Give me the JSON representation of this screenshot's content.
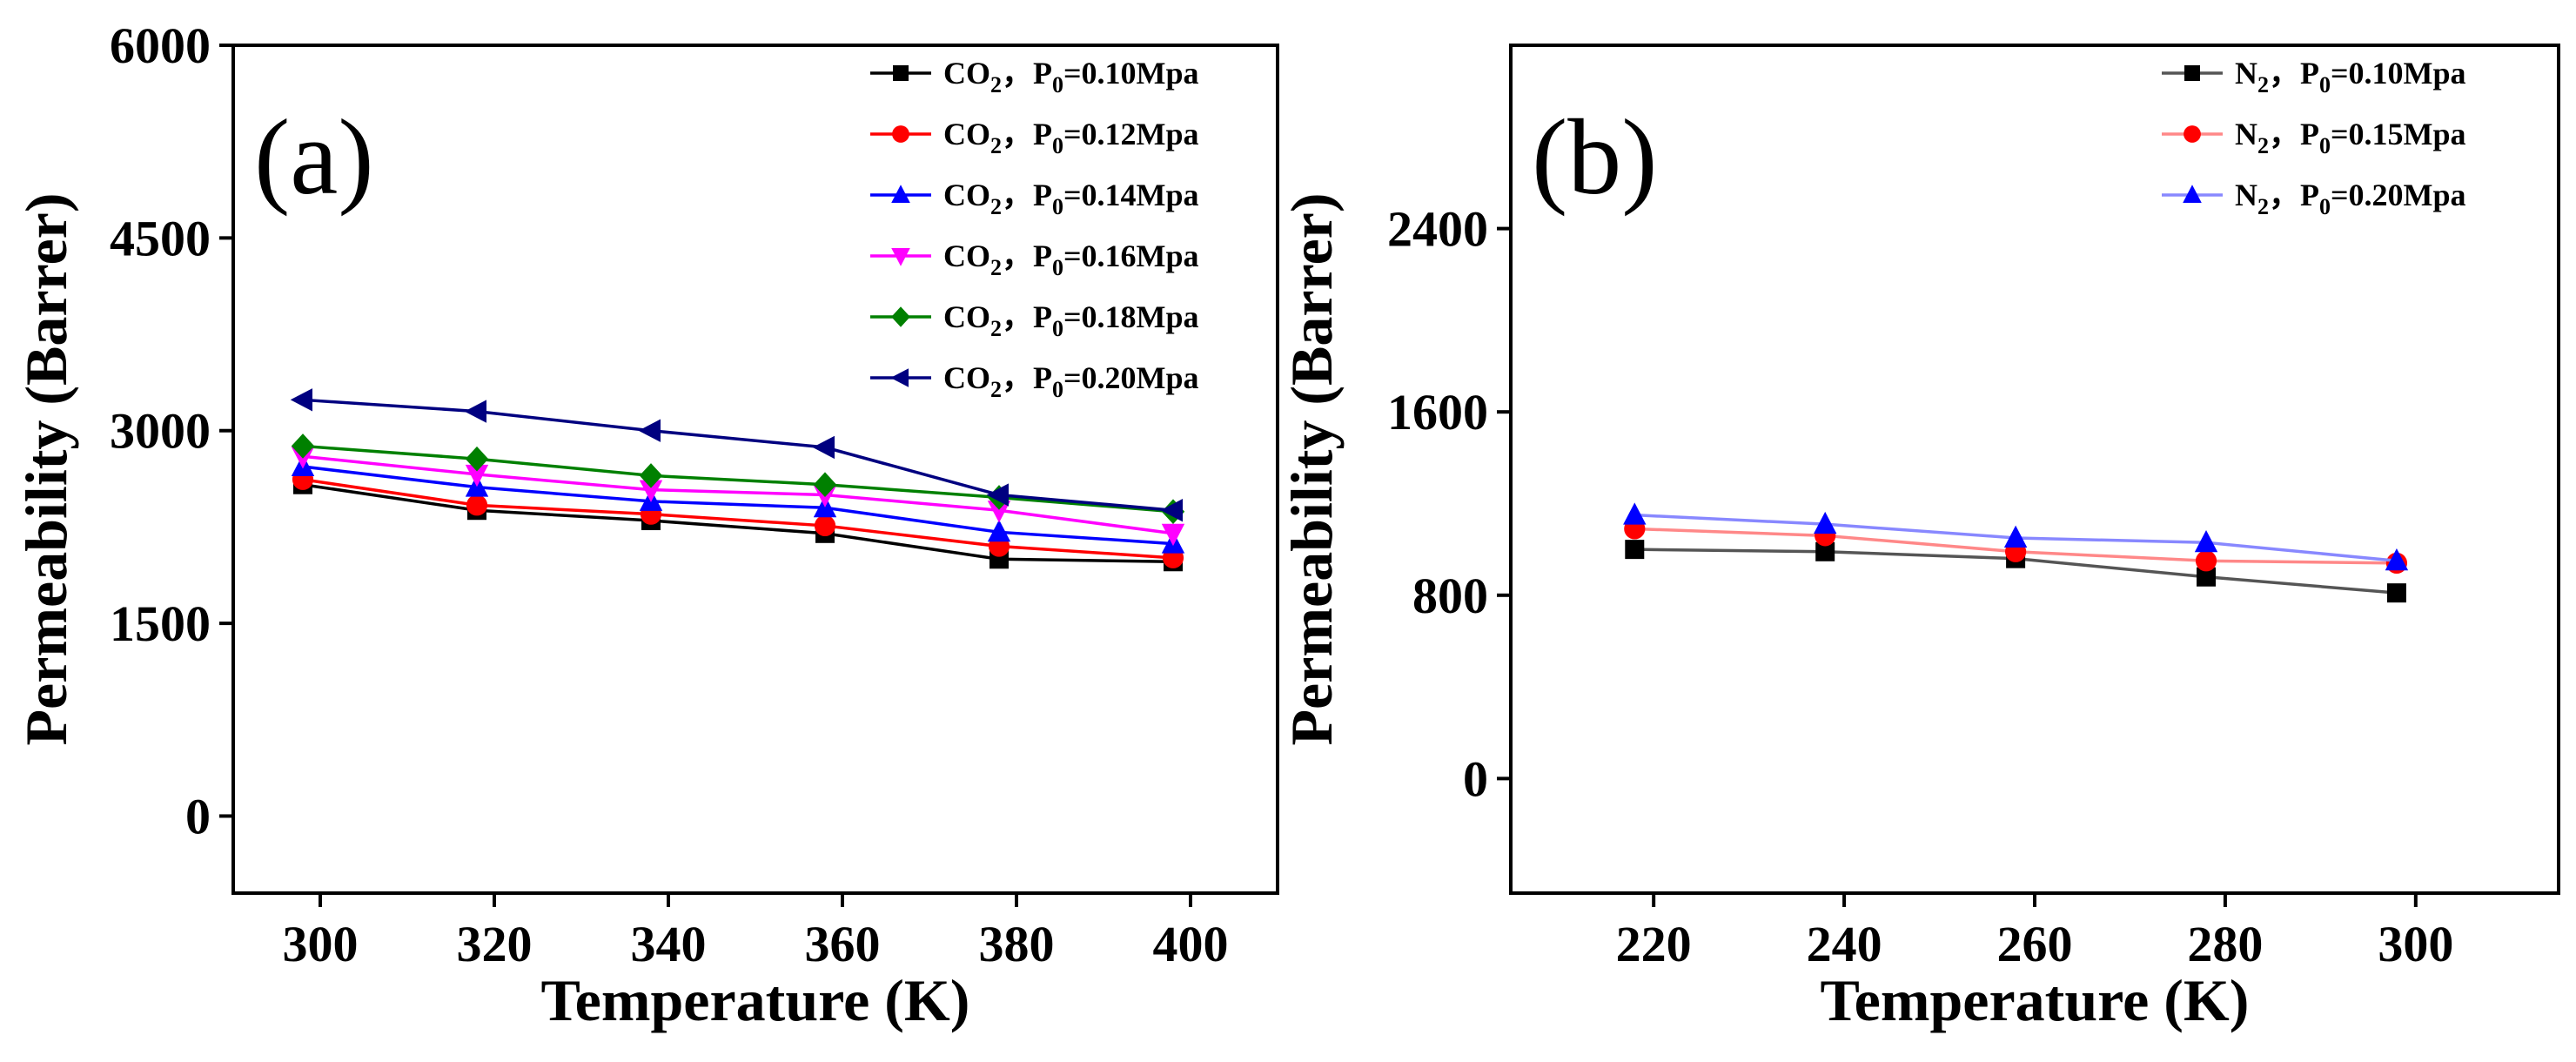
{
  "chart_data": [
    {
      "type": "line",
      "panel_label": "(a)",
      "xlabel": "Temperature (K)",
      "ylabel": "Permeability (Barrer)",
      "xlim": [
        290,
        410
      ],
      "ylim": [
        -600,
        6000
      ],
      "xticks": [
        300,
        320,
        340,
        360,
        380,
        400
      ],
      "yticks": [
        0,
        1500,
        3000,
        4500,
        6000
      ],
      "x": [
        298,
        318,
        338,
        358,
        378,
        398
      ],
      "legend_position": "top-right",
      "series": [
        {
          "gas": "CO",
          "sub": "2",
          "pressure": "P",
          "psub": "0",
          "pval": "=0.10Mpa",
          "color": "#000000",
          "marker": "square",
          "values": [
            2580,
            2380,
            2300,
            2200,
            2000,
            1980
          ]
        },
        {
          "gas": "CO",
          "sub": "2",
          "pressure": "P",
          "psub": "0",
          "pval": "=0.12Mpa",
          "color": "#ff0000",
          "marker": "circle",
          "values": [
            2620,
            2420,
            2350,
            2260,
            2100,
            2010
          ]
        },
        {
          "gas": "CO",
          "sub": "2",
          "pressure": "P",
          "psub": "0",
          "pval": "=0.14Mpa",
          "color": "#0000ff",
          "marker": "triangle-up",
          "values": [
            2720,
            2560,
            2450,
            2400,
            2210,
            2120
          ]
        },
        {
          "gas": "CO",
          "sub": "2",
          "pressure": "P",
          "psub": "0",
          "pval": "=0.16Mpa",
          "color": "#ff00ff",
          "marker": "triangle-down",
          "values": [
            2800,
            2660,
            2540,
            2500,
            2380,
            2200
          ]
        },
        {
          "gas": "CO",
          "sub": "2",
          "pressure": "P",
          "psub": "0",
          "pval": "=0.18Mpa",
          "color": "#008000",
          "marker": "diamond",
          "values": [
            2880,
            2780,
            2650,
            2580,
            2480,
            2370
          ]
        },
        {
          "gas": "CO",
          "sub": "2",
          "pressure": "P",
          "psub": "0",
          "pval": "=0.20Mpa",
          "color": "#000080",
          "marker": "triangle-left",
          "values": [
            3240,
            3150,
            3000,
            2870,
            2500,
            2380
          ]
        }
      ]
    },
    {
      "type": "line",
      "panel_label": "(b)",
      "xlabel": "Temperature (K)",
      "ylabel": "Permeability (Barrer)",
      "xlim": [
        205,
        315
      ],
      "ylim": [
        -500,
        3200
      ],
      "xticks": [
        220,
        240,
        260,
        280,
        300
      ],
      "yticks": [
        0,
        800,
        1600,
        2400
      ],
      "x": [
        218,
        238,
        258,
        278,
        298
      ],
      "legend_position": "top-right",
      "series": [
        {
          "gas": "N",
          "sub": "2",
          "pressure": "P",
          "psub": "0",
          "pval": "=0.10Mpa",
          "color": "#000000",
          "line_color": "#555555",
          "marker": "square",
          "values": [
            1000,
            990,
            960,
            880,
            810
          ]
        },
        {
          "gas": "N",
          "sub": "2",
          "pressure": "P",
          "psub": "0",
          "pval": "=0.15Mpa",
          "color": "#ff0000",
          "line_color": "#ff8888",
          "marker": "circle",
          "values": [
            1090,
            1060,
            990,
            950,
            940
          ]
        },
        {
          "gas": "N",
          "sub": "2",
          "pressure": "P",
          "psub": "0",
          "pval": "=0.20Mpa",
          "color": "#0000ff",
          "line_color": "#8888ff",
          "marker": "triangle-up",
          "values": [
            1150,
            1110,
            1050,
            1030,
            950
          ]
        }
      ]
    }
  ]
}
